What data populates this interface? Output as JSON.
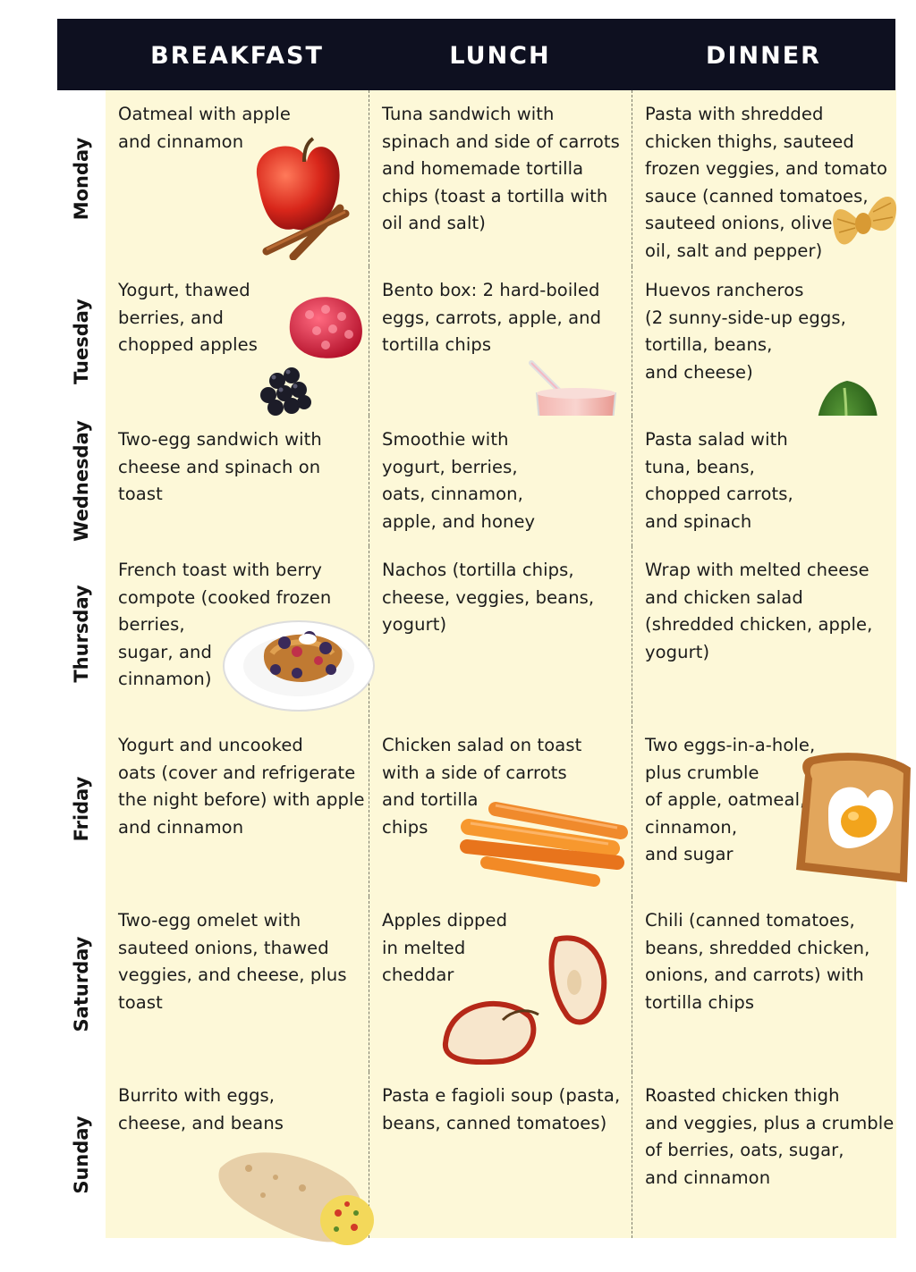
{
  "headers": {
    "breakfast": "BREAKFAST",
    "lunch": "LUNCH",
    "dinner": "DINNER"
  },
  "days": [
    {
      "day": "Monday",
      "breakfast": [
        "Oatmeal with apple",
        "and cinnamon"
      ],
      "lunch": [
        "Tuna sandwich with",
        "spinach and side of carrots",
        "and homemade tortilla",
        "chips (toast a tortilla with",
        "oil and salt)"
      ],
      "dinner": [
        "Pasta with shredded",
        "chicken thighs, sauteed",
        "frozen veggies, and tomato",
        "sauce (canned tomatoes,",
        "sauteed onions, olive",
        "oil, salt and pepper)"
      ]
    },
    {
      "day": "Tuesday",
      "breakfast": [
        "Yogurt, thawed",
        "berries, and",
        "chopped apples"
      ],
      "lunch": [
        "Bento box:  2 hard-boiled",
        "eggs, carrots, apple, and",
        "tortilla chips"
      ],
      "dinner": [
        "Huevos rancheros",
        "(2 sunny-side-up eggs,",
        "tortilla, beans,",
        "and cheese)"
      ]
    },
    {
      "day": "Wednesday",
      "breakfast": [
        "Two-egg sandwich with",
        "cheese and spinach on",
        "toast"
      ],
      "lunch": [
        "Smoothie with",
        "yogurt, berries,",
        "oats, cinnamon,",
        "apple, and honey"
      ],
      "dinner": [
        "Pasta salad with",
        "tuna, beans,",
        "chopped carrots,",
        "and spinach"
      ]
    },
    {
      "day": "Thursday",
      "breakfast": [
        "French toast with berry",
        "compote (cooked frozen",
        "berries,",
        "sugar, and",
        "cinnamon)"
      ],
      "lunch": [
        "Nachos (tortilla chips,",
        "cheese, veggies, beans,",
        "yogurt)"
      ],
      "dinner": [
        "Wrap with melted cheese",
        "and chicken salad",
        "(shredded chicken, apple,",
        "yogurt)"
      ]
    },
    {
      "day": "Friday",
      "breakfast": [
        "Yogurt and uncooked",
        "oats (cover and refrigerate",
        "the night before) with apple",
        "and cinnamon"
      ],
      "lunch": [
        "Chicken salad on toast",
        "with a side of carrots",
        "and tortilla",
        "chips"
      ],
      "dinner": [
        "Two eggs-in-a-hole,",
        "plus crumble",
        "of apple, oatmeal,",
        "cinnamon,",
        "and sugar"
      ]
    },
    {
      "day": "Saturday",
      "breakfast": [
        "Two-egg omelet with",
        "sauteed onions, thawed",
        "veggies, and cheese, plus",
        "toast"
      ],
      "lunch": [
        "Apples dipped",
        "in melted",
        "cheddar"
      ],
      "dinner": [
        "Chili (canned tomatoes,",
        "beans, shredded chicken,",
        "onions, and carrots) with",
        "tortilla chips"
      ]
    },
    {
      "day": "Sunday",
      "breakfast": [
        "Burrito with eggs,",
        "cheese, and beans"
      ],
      "lunch": [
        "Pasta e fagioli soup (pasta,",
        "beans, canned tomatoes)"
      ],
      "dinner": [
        "Roasted chicken thigh",
        "and veggies, plus a crumble",
        "of berries, oats, sugar,",
        "and cinnamon"
      ]
    }
  ],
  "illustrations": [
    "apple-cinnamon-icon",
    "pasta-bow-icon",
    "berries-icon",
    "smoothie-glass-icon",
    "spinach-leaf-icon",
    "french-toast-icon",
    "carrot-sticks-icon",
    "egg-in-toast-icon",
    "apple-slices-icon",
    "burrito-icon"
  ]
}
